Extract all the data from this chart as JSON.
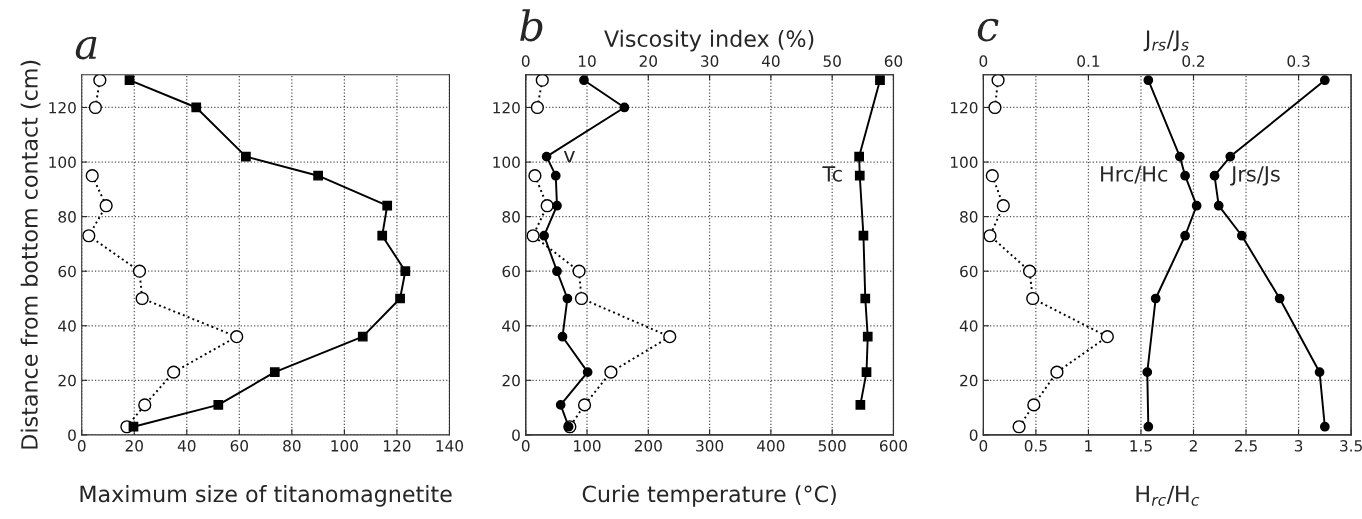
{
  "chart_data": [
    {
      "type": "line",
      "title": "a",
      "xlabel": "Maximum size of titanomagnetite",
      "ylabel": "Distance from bottom contact (cm)",
      "xlim": [
        0,
        140
      ],
      "xticks": [
        0,
        20,
        40,
        60,
        80,
        100,
        120,
        140
      ],
      "ylim": [
        0,
        132
      ],
      "yticks": [
        0,
        20,
        40,
        60,
        80,
        100,
        120
      ],
      "grid": true,
      "series": [
        {
          "color": "#000000",
          "line_style": "solid",
          "marker": "square",
          "x": [
            18.2,
            43.6,
            62.5,
            90,
            116.3,
            114.4,
            123.2,
            121.2,
            107,
            73.5,
            52,
            19.7
          ],
          "values": [
            130,
            120,
            102,
            95,
            84,
            73,
            60,
            50,
            36,
            23,
            11,
            3
          ]
        },
        {
          "color": "#000000",
          "line_style": "dotted",
          "marker": "circle",
          "x": [
            6.9,
            5.2
          ],
          "values": [
            130,
            120
          ]
        },
        {
          "color": "#000000",
          "line_style": "dotted",
          "marker": "circle",
          "x": [
            4,
            9.3,
            2.7,
            22,
            23,
            59,
            35,
            24,
            17.2
          ],
          "values": [
            95,
            84,
            73,
            60,
            50,
            36,
            23,
            11,
            3
          ]
        }
      ]
    },
    {
      "type": "line",
      "title": "b",
      "xlabel": "Curie temperature (°C)",
      "x2label": "Viscosity index (%)",
      "xlim": [
        0,
        600
      ],
      "xticks": [
        0,
        100,
        200,
        300,
        400,
        500,
        600
      ],
      "x2lim": [
        0,
        60
      ],
      "x2ticks": [
        0,
        10,
        20,
        30,
        40,
        50,
        60
      ],
      "ylim": [
        0,
        132
      ],
      "yticks": [
        0,
        20,
        40,
        60,
        80,
        100,
        120
      ],
      "grid": true,
      "series": [
        {
          "name": "v",
          "axis": "x2",
          "color": "#000000",
          "line_style": "solid",
          "marker": "circle",
          "x": [
            9.5,
            16.1,
            3.4,
            4.9,
            5.1,
            3.0,
            5.1,
            6.8,
            6.0,
            10.1,
            5.7,
            7.0
          ],
          "values": [
            130,
            120,
            102,
            95,
            84,
            73,
            60,
            50,
            36,
            23,
            11,
            3
          ]
        },
        {
          "name": "Tc",
          "color": "#000000",
          "line_style": "solid",
          "marker": "square",
          "x": [
            578,
            544,
            545,
            551,
            554,
            558,
            556,
            546
          ],
          "values": [
            130,
            102,
            95,
            73,
            50,
            36,
            23,
            11
          ]
        },
        {
          "color": "#000000",
          "line_style": "dotted",
          "marker": "circle",
          "x": [
            27,
            19
          ],
          "values": [
            130,
            120
          ]
        },
        {
          "color": "#000000",
          "line_style": "dotted",
          "marker": "circle",
          "x": [
            15,
            35,
            12,
            87,
            91,
            235,
            139,
            96,
            72
          ],
          "values": [
            95,
            84,
            73,
            60,
            50,
            36,
            23,
            11,
            3
          ]
        }
      ]
    },
    {
      "type": "line",
      "title": "c",
      "xlabel": "H$_{rc}$/H$_{c}$",
      "x2label": "J$_{rs}$/J$_{s}$",
      "xlim": [
        0,
        3.5
      ],
      "xticks": [
        0,
        0.5,
        1,
        1.5,
        2,
        2.5,
        3,
        3.5
      ],
      "x2lim": [
        0,
        0.35
      ],
      "x2ticks": [
        0,
        0.1,
        0.2,
        0.3
      ],
      "ylim": [
        0,
        132
      ],
      "yticks": [
        0,
        20,
        40,
        60,
        80,
        100,
        120
      ],
      "grid": true,
      "series": [
        {
          "name": "Hrc/Hc",
          "color": "#000000",
          "line_style": "solid",
          "marker": "circle",
          "x": [
            1.57,
            1.87,
            1.92,
            2.03,
            1.92,
            1.64,
            1.56,
            1.57
          ],
          "values": [
            130,
            102,
            95,
            84,
            73,
            50,
            23,
            3
          ]
        },
        {
          "name": "Jrs/Js",
          "axis": "x2",
          "color": "#000000",
          "line_style": "solid",
          "marker": "circle",
          "x": [
            0.325,
            0.235,
            0.22,
            0.224,
            0.246,
            0.282,
            0.32,
            0.325
          ],
          "values": [
            130,
            102,
            95,
            84,
            73,
            50,
            23,
            3
          ]
        },
        {
          "color": "#000000",
          "line_style": "dotted",
          "marker": "circle",
          "x": [
            0.14,
            0.11
          ],
          "values": [
            130,
            120
          ]
        },
        {
          "color": "#000000",
          "line_style": "dotted",
          "marker": "circle",
          "x": [
            0.085,
            0.19,
            0.063,
            0.44,
            0.47,
            1.18,
            0.7,
            0.48,
            0.34
          ],
          "values": [
            95,
            84,
            73,
            60,
            50,
            36,
            23,
            11,
            3
          ]
        }
      ]
    }
  ]
}
